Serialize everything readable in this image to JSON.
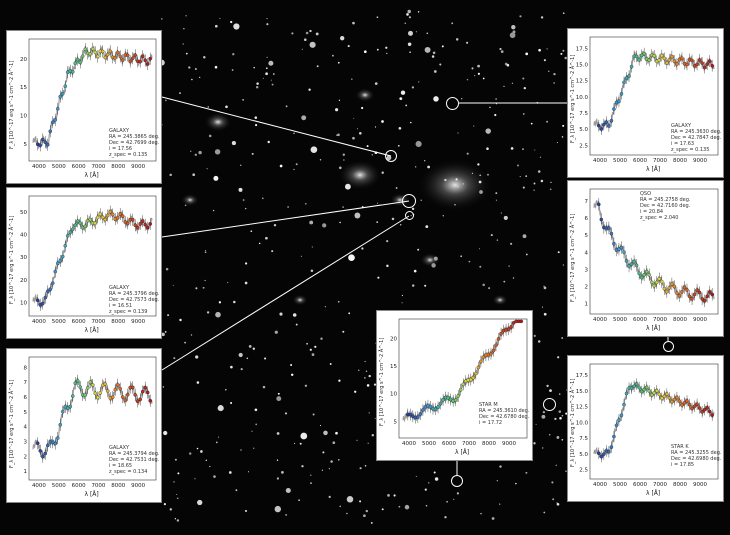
{
  "panels": [
    {
      "id": "p1",
      "type": "GALAXY",
      "lines": [
        "GALAXY",
        "RA = 245.3865 deg.",
        "Dec = 42.7699 deg.",
        "i = 17.56",
        "z_spec = 0.135"
      ],
      "ylabel": "F_λ [10^-17 erg s^-1 cm^-2 Å^-1]",
      "xlabel": "λ [Å]",
      "xticks": [
        "4000",
        "5000",
        "6000",
        "7000",
        "8000",
        "9000"
      ],
      "yticks": [
        "5",
        "10",
        "15",
        "20"
      ]
    },
    {
      "id": "p2",
      "type": "GALAXY",
      "lines": [
        "GALAXY",
        "RA = 245.3796 deg.",
        "Dec = 42.7573 deg.",
        "i = 16.51",
        "z_spec = 0.139"
      ],
      "ylabel": "F_λ [10^-17 erg s^-1 cm^-2 Å^-1]",
      "xlabel": "λ [Å]",
      "xticks": [
        "4000",
        "5000",
        "6000",
        "7000",
        "8000",
        "9000"
      ],
      "yticks": [
        "10",
        "20",
        "30",
        "40",
        "50"
      ]
    },
    {
      "id": "p3",
      "type": "GALAXY",
      "lines": [
        "GALAXY",
        "RA = 245.3794 deg.",
        "Dec = 42.7531 deg.",
        "i = 18.65",
        "z_spec = 0.134"
      ],
      "ylabel": "F_λ [10^-17 erg s^-1 cm^-2 Å^-1]",
      "xlabel": "λ [Å]",
      "xticks": [
        "4000",
        "5000",
        "6000",
        "7000",
        "8000",
        "9000"
      ],
      "yticks": [
        "1",
        "2",
        "3",
        "4",
        "5",
        "6",
        "7",
        "8"
      ]
    },
    {
      "id": "p4",
      "type": "GALAXY",
      "lines": [
        "GALAXY",
        "RA = 245.3630 deg.",
        "Dec = 42.7847 deg.",
        "i = 17.63",
        "z_spec = 0.135"
      ],
      "ylabel": "F_λ [10^-17 erg s^-1 cm^-2 Å^-1]",
      "xlabel": "λ [Å]",
      "xticks": [
        "4000",
        "5000",
        "6000",
        "7000",
        "8000",
        "9000"
      ],
      "yticks": [
        "2.5",
        "5.0",
        "7.5",
        "10.0",
        "12.5",
        "15.0",
        "17.5"
      ]
    },
    {
      "id": "p5",
      "type": "QSO",
      "lines": [
        "QSO",
        "RA = 245.2758 deg.",
        "Dec = 42.7160 deg.",
        "i = 20.84",
        "z_spec = 2.040"
      ],
      "ylabel": "F_λ [10^-17 erg s^-1 cm^-2 Å^-1]",
      "xlabel": "λ [Å]",
      "xticks": [
        "4000",
        "5000",
        "6000",
        "7000",
        "8000",
        "9000"
      ],
      "yticks": [
        "1",
        "2",
        "3",
        "4",
        "5",
        "6",
        "7"
      ]
    },
    {
      "id": "p6",
      "type": "STAR M",
      "lines": [
        "STAR M",
        "RA = 245.3610 deg.",
        "Dec = 42.6780 deg.",
        "i = 17.72"
      ],
      "ylabel": "F_λ [10^-17 erg s^-1 cm^-2 Å^-1]",
      "xlabel": "λ [Å]",
      "xticks": [
        "4000",
        "5000",
        "6000",
        "7000",
        "8000",
        "9000"
      ],
      "yticks": [
        "5",
        "10",
        "15",
        "20"
      ]
    },
    {
      "id": "p7",
      "type": "STAR K",
      "lines": [
        "STAR K",
        "RA = 245.3255 deg.",
        "Dec = 42.6980 deg.",
        "i = 17.85"
      ],
      "ylabel": "F_λ [10^-17 erg s^-1 cm^-2 Å^-1]",
      "xlabel": "λ [Å]",
      "xticks": [
        "4000",
        "5000",
        "6000",
        "7000",
        "8000",
        "9000"
      ],
      "yticks": [
        "2.5",
        "5.0",
        "7.5",
        "10.0",
        "12.5",
        "15.0",
        "17.5"
      ]
    }
  ],
  "colors": {
    "background": "#050505",
    "ring": "#ffffff",
    "model": "#9a9a9a"
  }
}
